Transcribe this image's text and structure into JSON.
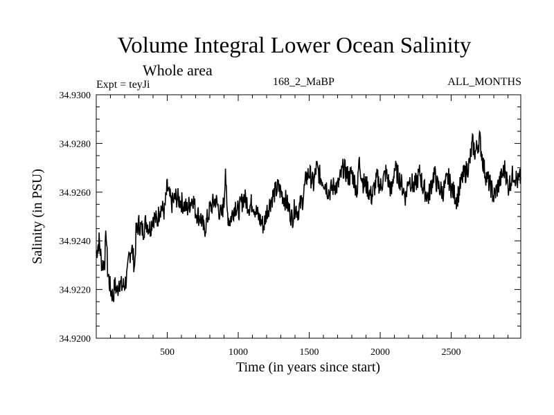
{
  "chart_data": {
    "type": "line",
    "title": "Volume Integral Lower Ocean Salinity",
    "subtitle": "Whole area",
    "annotations": {
      "experiment": "Expt = teyJi",
      "run": "168_2_MaBP",
      "months": "ALL_MONTHS"
    },
    "xlabel": "Time (in years since start)",
    "ylabel": "Salinity (in PSU)",
    "xlim": [
      0,
      2990
    ],
    "ylim": [
      34.92,
      34.93
    ],
    "x_ticks": [
      500,
      1000,
      1500,
      2000,
      2500
    ],
    "x_tick_labels": [
      "500",
      "1000",
      "1500",
      "2000",
      "2500"
    ],
    "x_minor_step": 100,
    "y_ticks": [
      34.92,
      34.922,
      34.924,
      34.926,
      34.928,
      34.93
    ],
    "y_tick_labels": [
      "34.9200",
      "34.9220",
      "34.9240",
      "34.9260",
      "34.9280",
      "34.9300"
    ],
    "y_minor_step": 0.0005,
    "grid": false,
    "legend": "none",
    "series": [
      {
        "name": "Salinity",
        "color": "#000000",
        "x": [
          0,
          20,
          40,
          60,
          70,
          80,
          100,
          120,
          130,
          150,
          160,
          180,
          200,
          220,
          230,
          250,
          270,
          280,
          300,
          330,
          350,
          380,
          400,
          430,
          450,
          480,
          500,
          530,
          560,
          600,
          640,
          680,
          700,
          740,
          760,
          800,
          840,
          880,
          900,
          910,
          920,
          940,
          980,
          1000,
          1040,
          1080,
          1100,
          1140,
          1180,
          1200,
          1240,
          1280,
          1300,
          1340,
          1380,
          1400,
          1420,
          1440,
          1450,
          1480,
          1500,
          1530,
          1550,
          1580,
          1600,
          1640,
          1680,
          1700,
          1740,
          1780,
          1800,
          1840,
          1850,
          1880,
          1900,
          1940,
          1980,
          2000,
          2040,
          2080,
          2100,
          2140,
          2180,
          2200,
          2240,
          2280,
          2300,
          2340,
          2380,
          2400,
          2440,
          2480,
          2500,
          2540,
          2580,
          2600,
          2630,
          2650,
          2670,
          2700,
          2730,
          2750,
          2780,
          2800,
          2840,
          2880,
          2900,
          2940,
          2970,
          2990
        ],
        "values": [
          34.9235,
          34.924,
          34.923,
          34.9232,
          34.9244,
          34.9228,
          34.922,
          34.9217,
          34.9222,
          34.9219,
          34.9224,
          34.9221,
          34.9222,
          34.9226,
          34.9233,
          34.9238,
          34.9229,
          34.9243,
          34.9247,
          34.9244,
          34.9248,
          34.9245,
          34.925,
          34.9248,
          34.9254,
          34.9252,
          34.9262,
          34.9255,
          34.9258,
          34.9256,
          34.9253,
          34.9258,
          34.9252,
          34.9249,
          34.9244,
          34.9253,
          34.9257,
          34.925,
          34.9256,
          34.9271,
          34.9252,
          34.9248,
          34.9255,
          34.9252,
          34.9258,
          34.9254,
          34.9256,
          34.925,
          34.9246,
          34.9252,
          34.9258,
          34.9262,
          34.926,
          34.9256,
          34.9249,
          34.9254,
          34.9252,
          34.9255,
          34.9256,
          34.9266,
          34.9268,
          34.9263,
          34.927,
          34.9266,
          34.9265,
          34.926,
          34.9263,
          34.9262,
          34.927,
          34.9266,
          34.9268,
          34.926,
          34.9273,
          34.9264,
          34.9263,
          34.9258,
          34.9266,
          34.9262,
          34.9268,
          34.926,
          34.927,
          34.9265,
          34.9258,
          34.9266,
          34.9262,
          34.9268,
          34.9262,
          34.9258,
          34.9268,
          34.9263,
          34.926,
          34.9266,
          34.9262,
          34.9257,
          34.9266,
          34.9268,
          34.9272,
          34.928,
          34.9276,
          34.9282,
          34.927,
          34.9266,
          34.9262,
          34.9258,
          34.9264,
          34.927,
          34.9262,
          34.9268,
          34.9264,
          34.9266
        ]
      }
    ]
  }
}
